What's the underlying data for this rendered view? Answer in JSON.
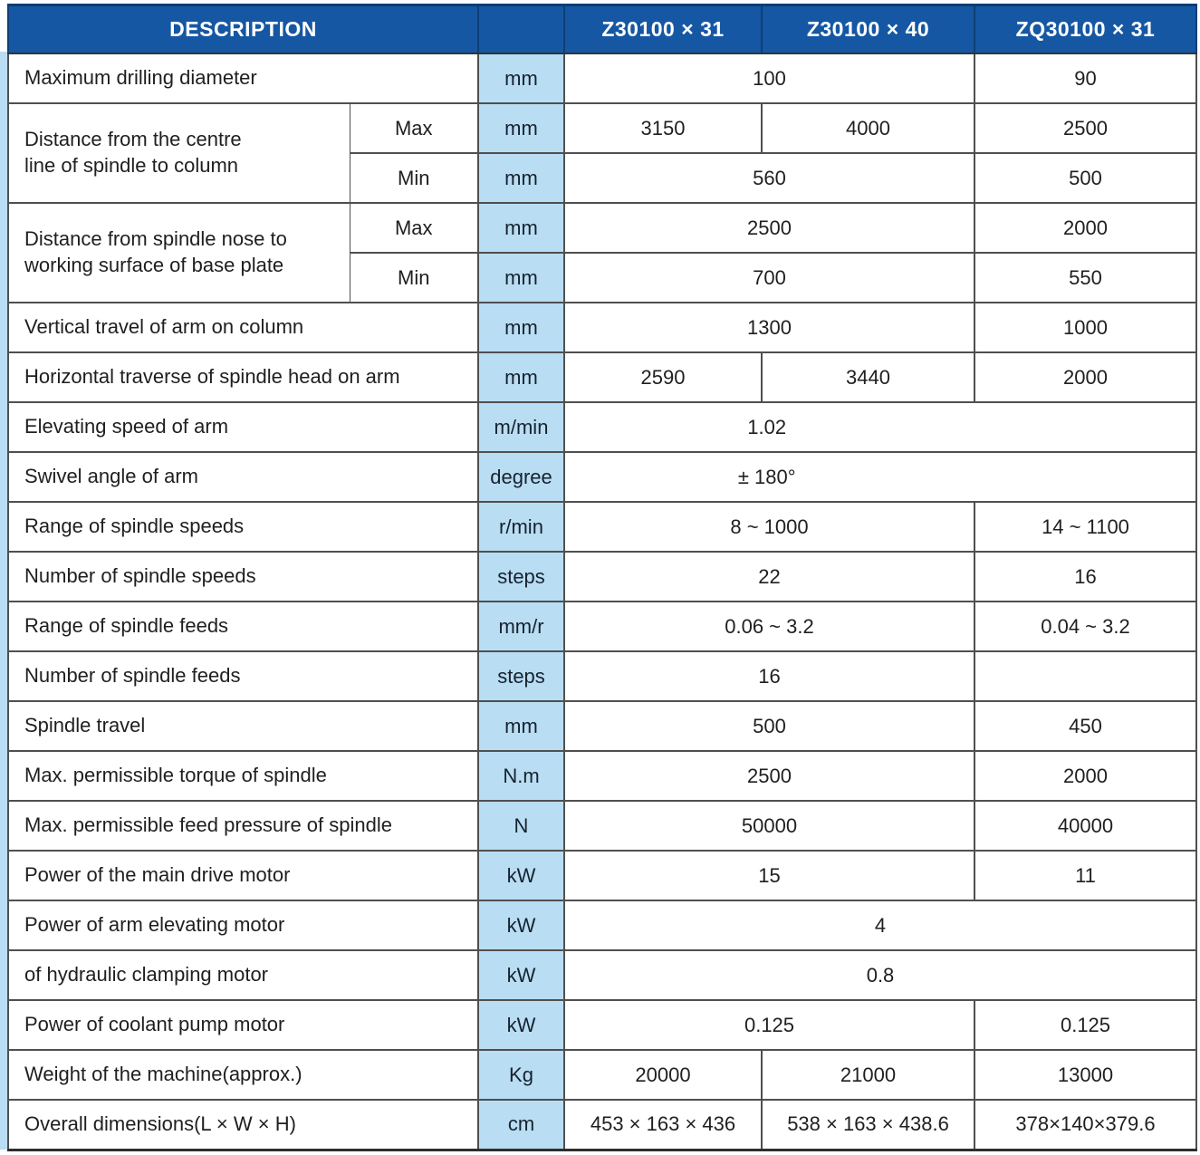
{
  "colors": {
    "header_bg": "#1557a3",
    "header_text": "#ffffff",
    "unit_bg": "#b9ddf3",
    "grid_line": "#4f4f4f",
    "accent_strip": "#b9ddf3"
  },
  "header": {
    "description": "DESCRIPTION",
    "unit_spacer": "",
    "models": [
      "Z30100 × 31",
      "Z30100 × 40",
      "ZQ30100 × 31"
    ]
  },
  "rows": [
    {
      "label": "Maximum drilling diameter",
      "unit": "mm",
      "v12": "100",
      "v3": "90"
    },
    {
      "label": "Distance from the centre\nline of spindle to column",
      "sub": "Max",
      "unit": "mm",
      "v1": "3150",
      "v2": "4000",
      "v3": "2500"
    },
    {
      "sub": "Min",
      "unit": "mm",
      "v12": "560",
      "v3": "500"
    },
    {
      "label": "Distance from spindle nose to\nworking surface of base plate",
      "sub": "Max",
      "unit": "mm",
      "v12": "2500",
      "v3": "2000"
    },
    {
      "sub": "Min",
      "unit": "mm",
      "v12": "700",
      "v3": "550"
    },
    {
      "label": "Vertical travel of arm on column",
      "unit": "mm",
      "v12": "1300",
      "v3": "1000"
    },
    {
      "label": "Horizontal traverse of spindle head on arm",
      "unit": "mm",
      "v1": "2590",
      "v2": "3440",
      "v3": "2000"
    },
    {
      "label": "Elevating speed of arm",
      "unit": "m/min",
      "v123": "1.02"
    },
    {
      "label": "Swivel angle of arm",
      "unit": "degree",
      "v123": "± 180°"
    },
    {
      "label": "Range of spindle speeds",
      "unit": "r/min",
      "v12": "8 ~ 1000",
      "v3": "14 ~ 1100"
    },
    {
      "label": "Number of spindle speeds",
      "unit": "steps",
      "v12": "22",
      "v3": "16"
    },
    {
      "label": "Range of spindle feeds",
      "unit": "mm/r",
      "v12": "0.06 ~ 3.2",
      "v3": "0.04 ~ 3.2"
    },
    {
      "label": "Number of spindle feeds",
      "unit": "steps",
      "v12": "16",
      "v3": ""
    },
    {
      "label": "Spindle travel",
      "unit": "mm",
      "v12": "500",
      "v3": "450"
    },
    {
      "label": "Max. permissible torque of spindle",
      "unit": "N.m",
      "v12": "2500",
      "v3": "2000"
    },
    {
      "label": "Max. permissible feed pressure of spindle",
      "unit": "N",
      "v12": "50000",
      "v3": "40000"
    },
    {
      "label": "Power of the main drive motor",
      "unit": "kW",
      "v12": "15",
      "v3": "11"
    },
    {
      "label": "Power of arm elevating  motor",
      "unit": "kW",
      "v123": "4"
    },
    {
      "label": "of hydraulic clamping motor",
      "unit": "kW",
      "v123": "0.8"
    },
    {
      "label": "Power of coolant pump motor",
      "unit": "kW",
      "v12": "0.125",
      "v3": "0.125"
    },
    {
      "label": "Weight of the machine(approx.)",
      "unit": "Kg",
      "v1": "20000",
      "v2": "21000",
      "v3": "13000"
    },
    {
      "label": "Overall dimensions(L × W × H)",
      "unit": "cm",
      "v1": "453 × 163 × 436",
      "v2": "538 × 163 × 438.6",
      "v3": "378×140×379.6"
    }
  ]
}
